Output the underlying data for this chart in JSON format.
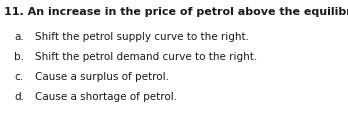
{
  "question_number": "11.",
  "question_text": " An increase in the price of petrol above the equilibrium will...",
  "options": [
    {
      "label": "a.",
      "text": "Shift the petrol supply curve to the right."
    },
    {
      "label": "b.",
      "text": "Shift the petrol demand curve to the right."
    },
    {
      "label": "c.",
      "text": "Cause a surplus of petrol."
    },
    {
      "label": "d.",
      "text": "Cause a shortage of petrol."
    }
  ],
  "bg_color": "#ffffff",
  "text_color": "#1a1a1a",
  "question_fontsize": 8.0,
  "option_fontsize": 7.5,
  "fig_width": 3.48,
  "fig_height": 1.27,
  "dpi": 100,
  "font_family": "DejaVu Sans"
}
